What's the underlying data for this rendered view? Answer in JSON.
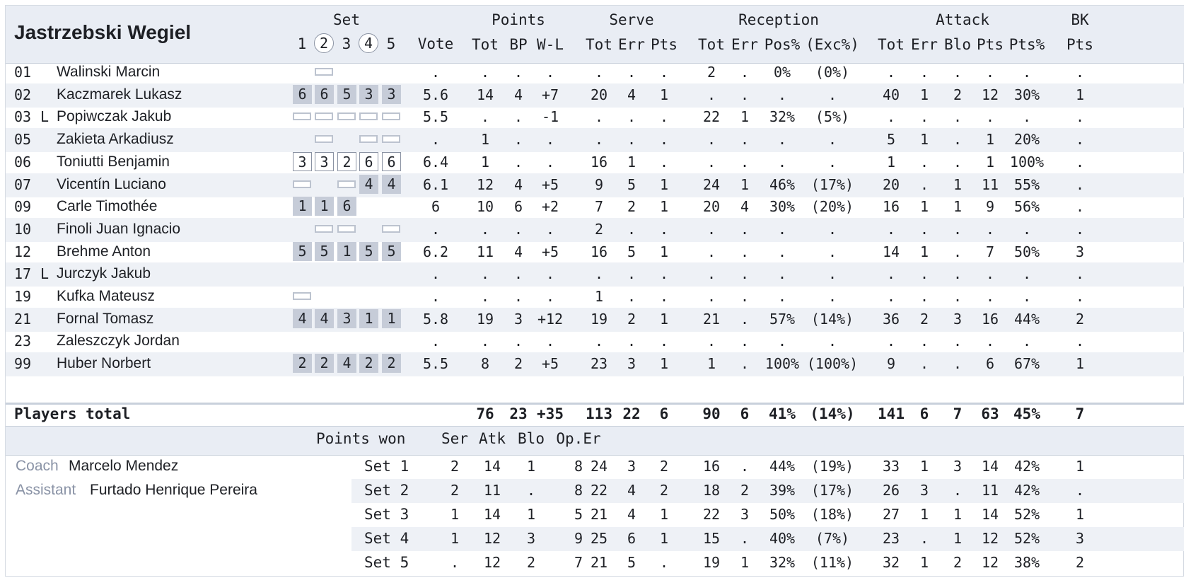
{
  "team": "Jastrzebski Wegiel",
  "groups": {
    "set": "Set",
    "points": "Points",
    "serve": "Serve",
    "reception": "Reception",
    "attack": "Attack",
    "bk": "BK"
  },
  "set_numbers": [
    "1",
    "2",
    "3",
    "4",
    "5"
  ],
  "vote_header": "Vote",
  "sub_headers": [
    "Tot",
    "BP",
    "W-L",
    "Tot",
    "Err",
    "Pts",
    "Tot",
    "Err",
    "Pos%",
    "(Exc%)",
    "Tot",
    "Err",
    "Blo",
    "Pts",
    "Pts%",
    "Pts"
  ],
  "players": [
    {
      "num": "01",
      "role": "",
      "name": "Walinski Marcin",
      "sets": [
        "",
        "b",
        "",
        "",
        ""
      ],
      "stats": [
        ".",
        ".",
        ".",
        ".",
        ".",
        ".",
        ".",
        "2",
        ".",
        "0%",
        "(0%)",
        ".",
        ".",
        ".",
        ".",
        ".",
        "."
      ]
    },
    {
      "num": "02",
      "role": "",
      "name": "Kaczmarek Lukasz",
      "sets": [
        "f6",
        "f6",
        "f5",
        "f3",
        "f3"
      ],
      "stats": [
        "5.6",
        "14",
        "4",
        "+7",
        "20",
        "4",
        "1",
        ".",
        ".",
        ".",
        ".",
        "40",
        "1",
        "2",
        "12",
        "30%",
        "1"
      ]
    },
    {
      "num": "03",
      "role": "L",
      "name": "Popiwczak Jakub",
      "sets": [
        "b",
        "b",
        "b",
        "b",
        "b"
      ],
      "stats": [
        "5.5",
        ".",
        ".",
        "-1",
        ".",
        ".",
        ".",
        "22",
        "1",
        "32%",
        "(5%)",
        ".",
        ".",
        ".",
        ".",
        ".",
        "."
      ]
    },
    {
      "num": "05",
      "role": "",
      "name": "Zakieta Arkadiusz",
      "sets": [
        "",
        "b",
        "",
        "b",
        "b"
      ],
      "stats": [
        ".",
        "1",
        ".",
        ".",
        ".",
        ".",
        ".",
        ".",
        ".",
        ".",
        ".",
        "5",
        "1",
        ".",
        "1",
        "20%",
        "."
      ]
    },
    {
      "num": "06",
      "role": "",
      "name": "Toniutti Benjamin",
      "sets": [
        "o3",
        "o3",
        "o2",
        "o6",
        "o6"
      ],
      "stats": [
        "6.4",
        "1",
        ".",
        ".",
        "16",
        "1",
        ".",
        ".",
        ".",
        ".",
        ".",
        "1",
        ".",
        ".",
        "1",
        "100%",
        "."
      ]
    },
    {
      "num": "07",
      "role": "",
      "name": "Vicentín Luciano",
      "sets": [
        "b",
        "",
        "b",
        "f4",
        "f4"
      ],
      "stats": [
        "6.1",
        "12",
        "4",
        "+5",
        "9",
        "5",
        "1",
        "24",
        "1",
        "46%",
        "(17%)",
        "20",
        ".",
        "1",
        "11",
        "55%",
        "."
      ]
    },
    {
      "num": "09",
      "role": "",
      "name": "Carle Timothée",
      "sets": [
        "f1",
        "f1",
        "f6",
        "",
        ""
      ],
      "stats": [
        "6",
        "10",
        "6",
        "+2",
        "7",
        "2",
        "1",
        "20",
        "4",
        "30%",
        "(20%)",
        "16",
        "1",
        "1",
        "9",
        "56%",
        "."
      ]
    },
    {
      "num": "10",
      "role": "",
      "name": "Finoli Juan Ignacio",
      "sets": [
        "",
        "b",
        "b",
        "",
        "b"
      ],
      "stats": [
        ".",
        ".",
        ".",
        ".",
        "2",
        ".",
        ".",
        ".",
        ".",
        ".",
        ".",
        ".",
        ".",
        ".",
        ".",
        ".",
        "."
      ]
    },
    {
      "num": "12",
      "role": "",
      "name": "Brehme Anton",
      "sets": [
        "f5",
        "f5",
        "f1",
        "f5",
        "f5"
      ],
      "stats": [
        "6.2",
        "11",
        "4",
        "+5",
        "16",
        "5",
        "1",
        ".",
        ".",
        ".",
        ".",
        "14",
        "1",
        ".",
        "7",
        "50%",
        "3"
      ]
    },
    {
      "num": "17",
      "role": "L",
      "name": "Jurczyk Jakub",
      "sets": [
        "",
        "",
        "",
        "",
        ""
      ],
      "stats": [
        ".",
        ".",
        ".",
        ".",
        ".",
        ".",
        ".",
        ".",
        ".",
        ".",
        ".",
        ".",
        ".",
        ".",
        ".",
        ".",
        "."
      ]
    },
    {
      "num": "19",
      "role": "",
      "name": "Kufka Mateusz",
      "sets": [
        "b",
        "",
        "",
        "",
        ""
      ],
      "stats": [
        ".",
        ".",
        ".",
        ".",
        "1",
        ".",
        ".",
        ".",
        ".",
        ".",
        ".",
        ".",
        ".",
        ".",
        ".",
        ".",
        "."
      ]
    },
    {
      "num": "21",
      "role": "",
      "name": "Fornal Tomasz",
      "sets": [
        "f4",
        "f4",
        "f3",
        "f1",
        "f1"
      ],
      "stats": [
        "5.8",
        "19",
        "3",
        "+12",
        "19",
        "2",
        "1",
        "21",
        ".",
        "57%",
        "(14%)",
        "36",
        "2",
        "3",
        "16",
        "44%",
        "2"
      ]
    },
    {
      "num": "23",
      "role": "",
      "name": "Zaleszczyk Jordan",
      "sets": [
        "",
        "",
        "",
        "",
        ""
      ],
      "stats": [
        ".",
        ".",
        ".",
        ".",
        ".",
        ".",
        ".",
        ".",
        ".",
        ".",
        ".",
        ".",
        ".",
        ".",
        ".",
        ".",
        "."
      ]
    },
    {
      "num": "99",
      "role": "",
      "name": "Huber Norbert",
      "sets": [
        "f2",
        "f2",
        "f4",
        "f2",
        "f2"
      ],
      "stats": [
        "5.5",
        "8",
        "2",
        "+5",
        "23",
        "3",
        "1",
        "1",
        ".",
        "100%",
        "(100%)",
        "9",
        ".",
        ".",
        "6",
        "67%",
        "1"
      ]
    }
  ],
  "totals": {
    "label": "Players total",
    "stats": [
      "",
      "76",
      "23",
      "+35",
      "113",
      "22",
      "6",
      "90",
      "6",
      "41%",
      "(14%)",
      "141",
      "6",
      "7",
      "63",
      "45%",
      "7"
    ]
  },
  "points_won": {
    "label": "Points won",
    "headers": [
      "Ser",
      "Atk",
      "Blo",
      "Op.Er"
    ]
  },
  "staff": {
    "coach_label": "Coach",
    "coach": "Marcelo Mendez",
    "assistant_label": "Assistant",
    "assistant": "Furtado Henrique Pereira"
  },
  "sets": [
    {
      "label": "Set 1",
      "pw": [
        "2",
        "14",
        "1",
        "8"
      ],
      "stats": [
        "24",
        "3",
        "2",
        "16",
        ".",
        "44%",
        "(19%)",
        "33",
        "1",
        "3",
        "14",
        "42%",
        "1"
      ]
    },
    {
      "label": "Set 2",
      "pw": [
        "2",
        "11",
        ".",
        "8"
      ],
      "stats": [
        "22",
        "4",
        "2",
        "18",
        "2",
        "39%",
        "(17%)",
        "26",
        "3",
        ".",
        "11",
        "42%",
        "."
      ]
    },
    {
      "label": "Set 3",
      "pw": [
        "1",
        "14",
        "1",
        "5"
      ],
      "stats": [
        "21",
        "4",
        "1",
        "22",
        "3",
        "50%",
        "(18%)",
        "27",
        "1",
        "1",
        "14",
        "52%",
        "1"
      ]
    },
    {
      "label": "Set 4",
      "pw": [
        "1",
        "12",
        "3",
        "9"
      ],
      "stats": [
        "25",
        "6",
        "1",
        "15",
        ".",
        "40%",
        "(7%)",
        "23",
        ".",
        "1",
        "12",
        "52%",
        "3"
      ]
    },
    {
      "label": "Set 5",
      "pw": [
        ".",
        "12",
        "2",
        "7"
      ],
      "stats": [
        "21",
        "5",
        ".",
        "19",
        "1",
        "32%",
        "(11%)",
        "32",
        "1",
        "2",
        "12",
        "38%",
        "2"
      ]
    }
  ]
}
